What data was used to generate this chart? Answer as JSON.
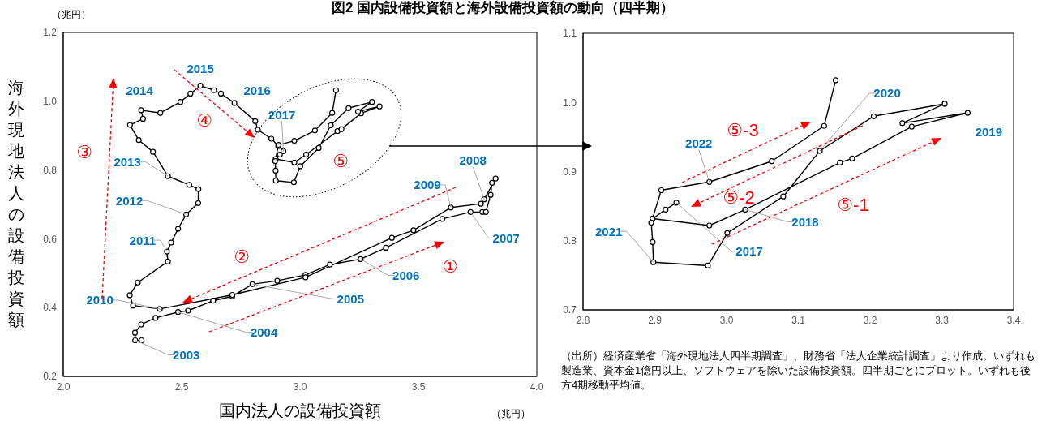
{
  "chart_data": [
    {
      "type": "line",
      "title": "図2  国内設備投資額と海外設備投資額の動向（四半期）",
      "xlabel": "国内法人の設備投資額",
      "ylabel": "海外現地法人の設備投資額",
      "series": [
        {
          "color": "#000000",
          "x": [
            2.331,
            2.304,
            2.303,
            2.329,
            2.39,
            2.485,
            2.527,
            2.633,
            2.714,
            2.799,
            2.904,
            3.023,
            3.126,
            3.256,
            3.363,
            3.601,
            3.72,
            3.77,
            3.785,
            3.805,
            3.811,
            3.826,
            3.778,
            3.764,
            3.637,
            3.479,
            3.388,
            3.023,
            2.714,
            2.408,
            2.295,
            2.281,
            2.315,
            2.442,
            2.438,
            2.456,
            2.485,
            2.519,
            2.57,
            2.571,
            2.532,
            2.442,
            2.379,
            2.319,
            2.282,
            2.337,
            2.329,
            2.41,
            2.495,
            2.537,
            2.579,
            2.637,
            2.666,
            2.723,
            2.811,
            2.822,
            2.879,
            2.908,
            2.93,
            2.915,
            2.897,
            2.976,
            3.026,
            3.158,
            3.175,
            3.258,
            3.336,
            3.245,
            3.304,
            3.205,
            3.13,
            3.079,
            3.001,
            2.974,
            2.898,
            2.897,
            2.895,
            2.909,
            2.976,
            3.063,
            3.136,
            3.152
          ],
          "values": [
            0.305,
            0.305,
            0.327,
            0.351,
            0.37,
            0.387,
            0.391,
            0.42,
            0.433,
            0.468,
            0.478,
            0.495,
            0.525,
            0.541,
            0.574,
            0.658,
            0.678,
            0.678,
            0.678,
            0.728,
            0.763,
            0.775,
            0.715,
            0.702,
            0.691,
            0.625,
            0.603,
            0.488,
            0.437,
            0.396,
            0.406,
            0.436,
            0.473,
            0.534,
            0.563,
            0.589,
            0.629,
            0.671,
            0.704,
            0.744,
            0.757,
            0.782,
            0.853,
            0.887,
            0.931,
            0.949,
            0.974,
            0.966,
            0.998,
            1.022,
            1.045,
            1.032,
            1.022,
            0.995,
            0.942,
            0.917,
            0.891,
            0.87,
            0.855,
            0.845,
            0.832,
            0.822,
            0.845,
            0.913,
            0.919,
            0.965,
            0.985,
            0.97,
            0.998,
            0.98,
            0.93,
            0.864,
            0.811,
            0.764,
            0.769,
            0.798,
            0.826,
            0.873,
            0.885,
            0.915,
            0.966,
            1.032
          ]
        }
      ],
      "xlim": [
        2,
        4
      ],
      "xticks": [
        {
          "value": 2,
          "label": "2.0"
        },
        2.5,
        {
          "value": 3,
          "label": "3.0"
        },
        3.5,
        {
          "value": 4,
          "label": "4.0"
        }
      ],
      "ylim": [
        0.2,
        1.2
      ],
      "yticks": [
        0.2,
        0.4,
        0.6,
        0.8,
        {
          "value": 1,
          "label": "1.0"
        },
        1.2
      ],
      "marker": "circle",
      "line_style": "solid",
      "annotations": [
        {
          "text": "2003",
          "x": 2.304,
          "y": 0.305
        },
        {
          "text": "2004",
          "x": 2.485,
          "y": 0.387
        },
        {
          "text": "2005",
          "x": 2.799,
          "y": 0.468
        },
        {
          "text": "2006",
          "x": 3.256,
          "y": 0.541
        },
        {
          "text": "2007",
          "x": 3.72,
          "y": 0.678
        },
        {
          "text": "2008",
          "x": 3.778,
          "y": 0.715
        },
        {
          "text": "2009",
          "x": 3.637,
          "y": 0.691
        },
        {
          "text": "2010",
          "x": 2.408,
          "y": 0.396
        },
        {
          "text": "2011",
          "x": 2.438,
          "y": 0.563
        },
        {
          "text": "2012",
          "x": 2.519,
          "y": 0.671
        },
        {
          "text": "2013",
          "x": 2.442,
          "y": 0.782
        },
        {
          "text": "2014",
          "x": 2.329,
          "y": 0.974
        },
        {
          "text": "2015",
          "x": 2.579,
          "y": 1.045
        },
        {
          "text": "2016",
          "x": 2.723,
          "y": 0.995
        },
        {
          "text": "2017",
          "x": 2.93,
          "y": 0.855
        },
        "①",
        "②",
        "③",
        "④",
        "⑤",
        "（兆円）",
        "（兆円）"
      ]
    },
    {
      "type": "line",
      "series": [
        {
          "color": "#000000",
          "x": [
            2.93,
            2.915,
            2.897,
            2.976,
            3.026,
            3.158,
            3.175,
            3.258,
            3.336,
            3.245,
            3.304,
            3.205,
            3.13,
            3.079,
            3.001,
            2.974,
            2.898,
            2.897,
            2.895,
            2.909,
            2.976,
            3.063,
            3.136,
            3.152
          ],
          "values": [
            0.855,
            0.845,
            0.832,
            0.822,
            0.845,
            0.913,
            0.919,
            0.965,
            0.985,
            0.97,
            0.998,
            0.98,
            0.93,
            0.864,
            0.811,
            0.764,
            0.769,
            0.798,
            0.826,
            0.873,
            0.885,
            0.915,
            0.966,
            1.032
          ]
        }
      ],
      "xlim": [
        2.8,
        3.4
      ],
      "xticks": [
        2.8,
        2.9,
        {
          "value": 3,
          "label": "3.0"
        },
        3.1,
        3.2,
        3.3,
        3.4
      ],
      "ylim": [
        0.7,
        1.1
      ],
      "yticks": [
        0.7,
        0.8,
        0.9,
        {
          "value": 1,
          "label": "1.0"
        },
        1.1
      ],
      "marker": "circle",
      "line_style": "solid",
      "annotations": [
        {
          "text": "2017",
          "x": 2.93,
          "y": 0.855
        },
        {
          "text": "2018",
          "x": 3.026,
          "y": 0.845
        },
        {
          "text": "2019",
          "x": 3.336,
          "y": 0.985
        },
        {
          "text": "2020",
          "x": 3.13,
          "y": 0.93
        },
        {
          "text": "2021",
          "x": 2.898,
          "y": 0.769
        },
        {
          "text": "2022",
          "x": 2.976,
          "y": 0.885
        },
        "⑤-1",
        "⑤-2",
        "⑤-3",
        "（出所）経済産業省「海外現地法人四半期調査」、財務省「法人企業統計調査」より作成。いずれも製造業、資本金1億円以上、ソフトウェアを除いた設備投資額。四半期ごとにプロット。いずれも後方4期移動平均値。"
      ]
    }
  ]
}
